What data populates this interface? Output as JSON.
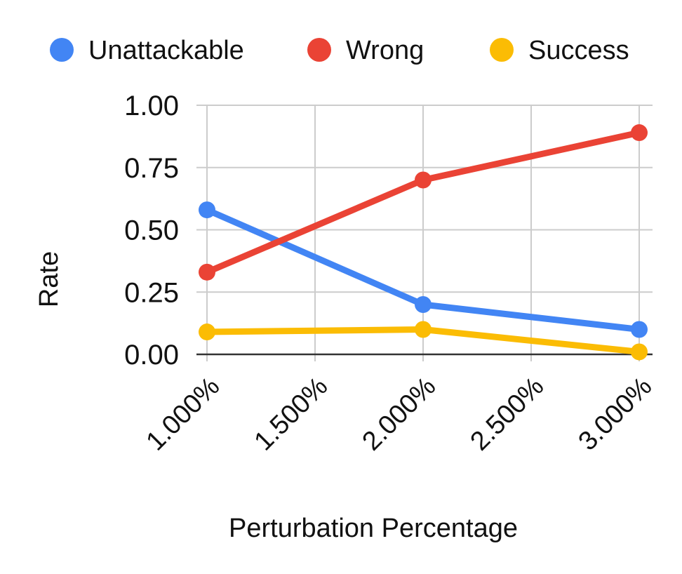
{
  "chart_data": {
    "type": "line",
    "xlabel": "Perturbation Percentage",
    "ylabel": "Rate",
    "x_ticks": [
      1.0,
      1.5,
      2.0,
      2.5,
      3.0
    ],
    "x_tick_labels": [
      "1.000%",
      "1.500%",
      "2.000%",
      "2.500%",
      "3.000%"
    ],
    "xlim": [
      1.0,
      3.0
    ],
    "y_ticks": [
      0.0,
      0.25,
      0.5,
      0.75,
      1.0
    ],
    "y_tick_labels": [
      "0.00",
      "0.25",
      "0.50",
      "0.75",
      "1.00"
    ],
    "ylim": [
      0.0,
      1.0
    ],
    "grid": true,
    "legend_position": "top",
    "x": [
      1.0,
      2.0,
      3.0
    ],
    "series": [
      {
        "name": "Unattackable",
        "color": "#4285F4",
        "values": [
          0.58,
          0.2,
          0.1
        ]
      },
      {
        "name": "Wrong",
        "color": "#EA4335",
        "values": [
          0.33,
          0.7,
          0.89
        ]
      },
      {
        "name": "Success",
        "color": "#FBBC04",
        "values": [
          0.09,
          0.1,
          0.01
        ]
      }
    ]
  }
}
